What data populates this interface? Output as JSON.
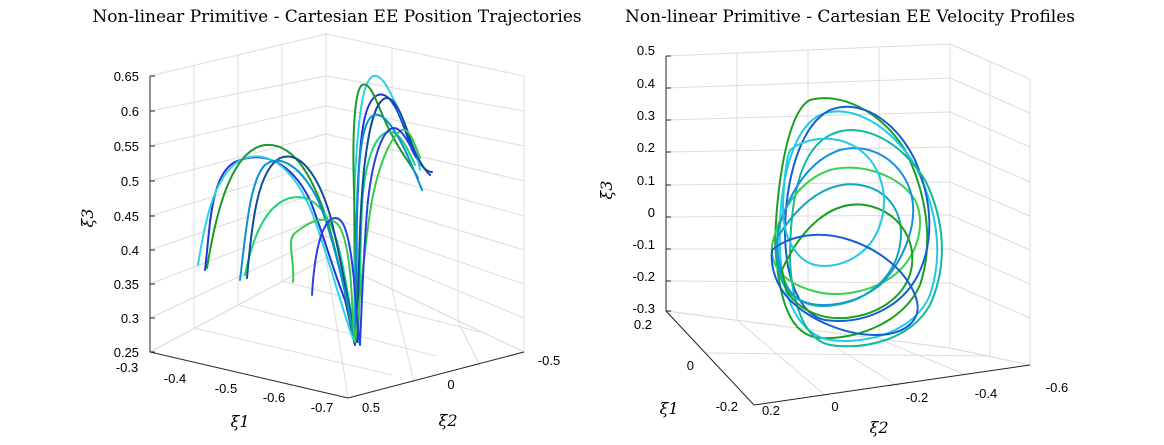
{
  "chart_data": [
    {
      "type": "line",
      "title": "Non-linear Primitive - Cartesian EE Position Trajectories",
      "xlabel": "ξ1",
      "ylabel": "ξ2",
      "zlabel": "ξ3",
      "zticks": [
        "0.25",
        "0.3",
        "0.35",
        "0.4",
        "0.45",
        "0.5",
        "0.55",
        "0.6",
        "0.65"
      ],
      "xticks": [
        "-0.3",
        "-0.4",
        "-0.5",
        "-0.6",
        "-0.7"
      ],
      "yticks": [
        "0.5",
        "0",
        "-0.5"
      ],
      "zlim": [
        0.25,
        0.65
      ],
      "colors": [
        "#1f36d6",
        "#2dd2e8",
        "#1a9a2a",
        "#19d47a",
        "#0d4f96",
        "#0b8fd8",
        "#36c94a",
        "#2a3fe0"
      ],
      "grid": true
    },
    {
      "type": "line",
      "title": "Non-linear Primitive - Cartesian EE Velocity Profiles",
      "xlabel": "ξ1",
      "ylabel": "ξ2",
      "zlabel": "ξ3",
      "zticks": [
        "-0.3",
        "-0.2",
        "-0.1",
        "0",
        "0.1",
        "0.2",
        "0.3",
        "0.4",
        "0.5"
      ],
      "xticks": [
        "0.2",
        "0",
        "-0.2"
      ],
      "yticks": [
        "0.2",
        "0",
        "-0.2",
        "-0.4",
        "-0.6"
      ],
      "zlim": [
        -0.3,
        0.5
      ],
      "colors": [
        "#1aa020",
        "#22c8e6",
        "#1260d0",
        "#12b89a",
        "#3ad050",
        "#1890e0",
        "#0fa8b8"
      ],
      "grid": true
    }
  ]
}
